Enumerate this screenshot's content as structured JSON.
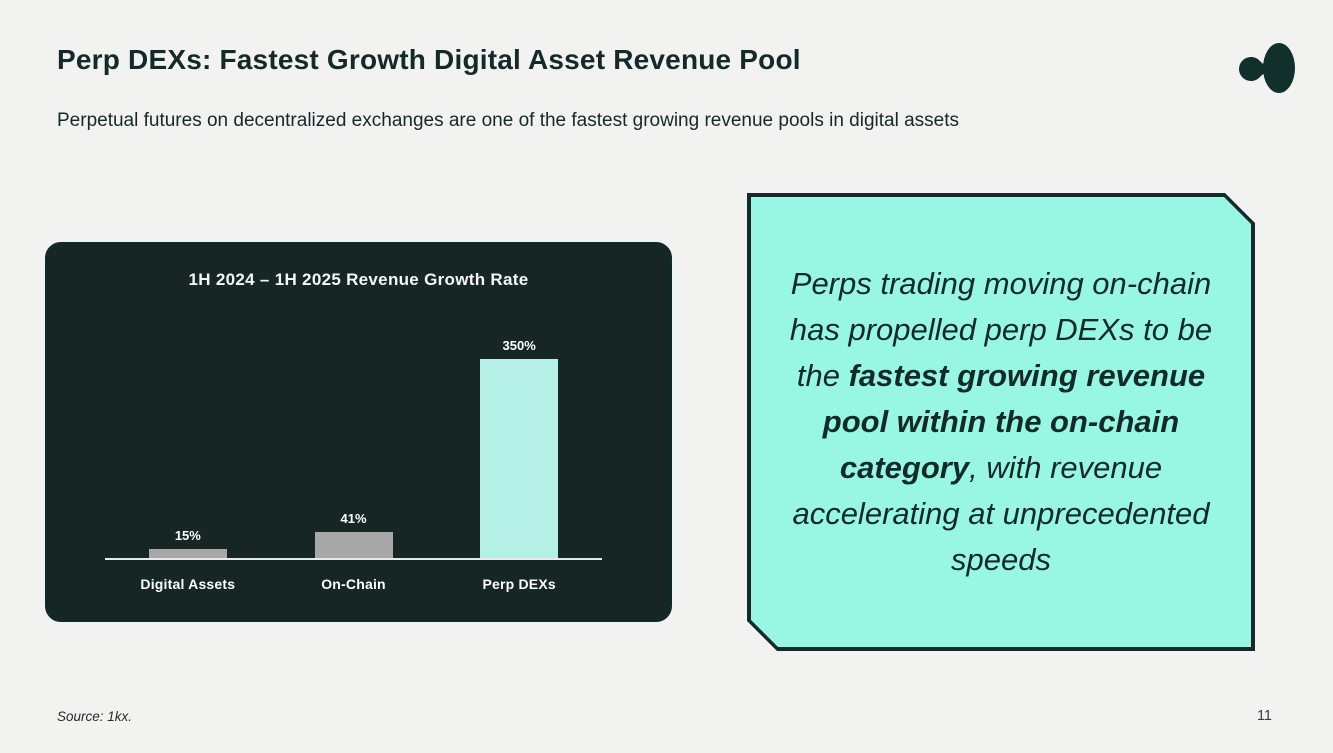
{
  "slide": {
    "title": "Perp DEXs: Fastest Growth Digital Asset Revenue Pool",
    "subtitle": "Perpetual futures on decentralized exchanges are one of the fastest growing revenue pools in digital assets",
    "footer": {
      "source": "Source: 1kx.",
      "page_number": "11"
    }
  },
  "callout": {
    "segments": [
      {
        "text": "Perps trading moving on-chain has propelled perp DEXs to be the ",
        "bold": false
      },
      {
        "text": "fastest growing revenue pool within the on-chain category",
        "bold": true
      },
      {
        "text": ", with revenue accelerating at unprecedented speeds",
        "bold": false
      }
    ]
  },
  "chart_data": {
    "type": "bar",
    "title": "1H 2024 – 1H 2025 Revenue Growth Rate",
    "categories": [
      "Digital Assets",
      "On-Chain",
      "Perp DEXs"
    ],
    "values": [
      15,
      41,
      350
    ],
    "data_labels": [
      "15%",
      "41%",
      "350%"
    ],
    "bar_colors": [
      "#a8a8a8",
      "#a8a8a8",
      "#b4f0e5"
    ],
    "ylim": [
      0,
      350
    ],
    "xlabel": "",
    "ylabel": "",
    "grid": false,
    "legend": false
  },
  "colors": {
    "page_background": "#f2f2f0",
    "heading": "#14292a",
    "panel_background": "#152625",
    "axis_line": "#e8eae9",
    "callout_background": "#97f7e3",
    "callout_border": "#152a2b",
    "callout_text": "#13292b",
    "logo": "#11302b"
  }
}
